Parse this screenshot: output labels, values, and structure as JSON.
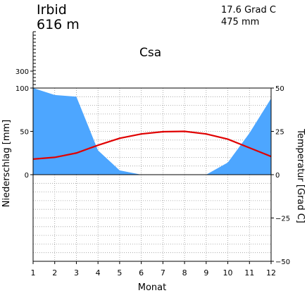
{
  "header": {
    "station": "Irbid",
    "elevation": "616  m",
    "mean_temperature": "17.6  Grad C",
    "annual_precipitation": "475  mm",
    "climate_class": "Csa"
  },
  "chart_data": {
    "type": "area",
    "xlabel": "Monat",
    "ylabel_left": "Niederschlag [mm]",
    "ylabel_right": "Temperatur [Grad C]",
    "x": [
      1,
      2,
      3,
      4,
      5,
      6,
      7,
      8,
      9,
      10,
      11,
      12
    ],
    "x_ticks": [
      "1",
      "2",
      "3",
      "4",
      "5",
      "6",
      "7",
      "8",
      "9",
      "10",
      "11",
      "12"
    ],
    "left_ticks": [
      "300",
      "100",
      "50",
      "0"
    ],
    "right_ticks": [
      "50",
      "25",
      "0",
      "−25",
      "−50"
    ],
    "precip_range": [
      -100,
      100
    ],
    "temp_range": [
      -50,
      50
    ],
    "grid": true,
    "series": [
      {
        "kind": "area",
        "axis": "left",
        "values": [
          100,
          92,
          90,
          28,
          5,
          0,
          0,
          0,
          0,
          14,
          48,
          88
        ],
        "color": "#4da6ff"
      },
      {
        "kind": "line",
        "axis": "right",
        "values": [
          9,
          10,
          12.5,
          17,
          21,
          23.5,
          24.8,
          25,
          23.5,
          20.5,
          15.5,
          10.5
        ],
        "color": "#e00000"
      }
    ]
  }
}
